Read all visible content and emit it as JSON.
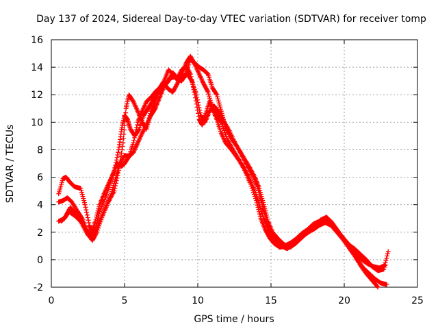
{
  "chart_data": {
    "type": "scatter",
    "title": "Day 137 of 2024, Sidereal Day-to-day VTEC variation (SDTVAR) for receiver tomp",
    "xlabel": "GPS time / hours",
    "ylabel": "SDTVAR / TECUs",
    "xlim": [
      0,
      25
    ],
    "ylim": [
      -2,
      16
    ],
    "xticks": [
      "0",
      "5",
      "10",
      "15",
      "20",
      "25"
    ],
    "yticks": [
      "-2",
      "0",
      "2",
      "4",
      "6",
      "8",
      "10",
      "12",
      "14",
      "16"
    ],
    "grid": true,
    "marker": "+",
    "color": "#ff0000",
    "series": [
      {
        "x": [
          0.5,
          0.8,
          1.0,
          1.3,
          1.6,
          2.0,
          2.3,
          2.6,
          2.8,
          3.0,
          3.3,
          3.6,
          3.9,
          4.2,
          4.5,
          4.8,
          5.0,
          5.3,
          5.6,
          5.9,
          6.2,
          6.5,
          6.8,
          7.1,
          7.4,
          7.7,
          8.0,
          8.3,
          8.6,
          8.9,
          9.2,
          9.5,
          9.8,
          10.1,
          10.3,
          10.5,
          10.8,
          11.0,
          11.3,
          11.6,
          12.0,
          12.4,
          12.8,
          13.2,
          13.6,
          14.0,
          14.3,
          14.6,
          14.9,
          15.2,
          15.6,
          16.0,
          16.4,
          16.8,
          17.2,
          17.6,
          18.0,
          18.4,
          18.8,
          19.2,
          19.6,
          20.0,
          20.4,
          20.8,
          21.2,
          21.6,
          22.0,
          22.4,
          22.8
        ],
        "y": [
          4.8,
          5.9,
          6.0,
          5.6,
          5.3,
          5.2,
          4.0,
          2.5,
          2.0,
          2.8,
          4.0,
          4.8,
          5.5,
          6.2,
          7.0,
          6.8,
          7.0,
          7.5,
          8.5,
          10.0,
          10.8,
          11.5,
          11.8,
          12.2,
          12.5,
          13.0,
          13.8,
          13.5,
          13.2,
          13.8,
          14.1,
          13.5,
          12.0,
          10.2,
          9.8,
          10.5,
          11.5,
          11.0,
          10.5,
          10.0,
          8.8,
          8.0,
          7.3,
          6.5,
          5.5,
          4.3,
          3.0,
          2.2,
          1.6,
          1.2,
          0.9,
          1.0,
          1.2,
          1.5,
          1.8,
          2.1,
          2.5,
          2.9,
          3.1,
          2.6,
          2.0,
          1.5,
          1.0,
          0.5,
          0.0,
          -0.3,
          -0.5,
          -0.6,
          -0.4
        ]
      },
      {
        "x": [
          0.5,
          0.8,
          1.1,
          1.4,
          1.8,
          2.1,
          2.4,
          2.7,
          3.0,
          3.3,
          3.7,
          4.0,
          4.3,
          4.6,
          4.8,
          5.0,
          5.2,
          5.4,
          5.7,
          6.0,
          6.3,
          6.6,
          6.9,
          7.2,
          7.5,
          7.8,
          8.1,
          8.4,
          8.7,
          9.0,
          9.3,
          9.6,
          9.9,
          10.2,
          10.5,
          10.8,
          11.1,
          11.4,
          11.7,
          12.1,
          12.5,
          12.9,
          13.3,
          13.7,
          14.1,
          14.4,
          14.7,
          15.0,
          15.3,
          15.7,
          16.1,
          16.5,
          16.9,
          17.3,
          17.7,
          18.1,
          18.5,
          18.9,
          19.3,
          19.7,
          20.1,
          20.5,
          20.9,
          21.3,
          21.7,
          22.1,
          22.5,
          22.9
        ],
        "y": [
          4.2,
          4.3,
          4.5,
          4.2,
          3.5,
          3.0,
          2.2,
          1.7,
          2.2,
          3.5,
          4.5,
          5.5,
          6.5,
          8.0,
          9.5,
          10.5,
          10.2,
          9.5,
          9.0,
          9.5,
          10.5,
          11.0,
          11.5,
          12.0,
          12.5,
          12.8,
          13.2,
          13.3,
          13.0,
          13.2,
          13.5,
          13.0,
          12.0,
          10.5,
          10.0,
          10.8,
          11.2,
          10.8,
          10.2,
          9.5,
          8.6,
          7.8,
          7.0,
          6.2,
          5.2,
          4.0,
          2.8,
          1.9,
          1.4,
          1.0,
          0.8,
          1.1,
          1.5,
          1.8,
          2.1,
          2.4,
          2.8,
          2.9,
          2.4,
          1.8,
          1.2,
          0.6,
          0.0,
          -0.6,
          -1.0,
          -1.4,
          -1.7,
          -1.8
        ]
      },
      {
        "x": [
          0.5,
          0.9,
          1.2,
          1.6,
          2.0,
          2.4,
          2.8,
          3.1,
          3.5,
          3.9,
          4.3,
          4.6,
          4.9,
          5.1,
          5.3,
          5.6,
          5.9,
          6.2,
          6.5,
          6.8,
          7.1,
          7.4,
          7.7,
          8.0,
          8.3,
          8.6,
          8.9,
          9.2,
          9.5,
          9.8,
          10.1,
          10.4,
          10.7,
          11.0,
          11.3,
          11.6,
          11.9,
          12.3,
          12.7,
          13.1,
          13.5,
          13.9,
          14.2,
          14.5,
          14.8,
          15.1,
          15.5,
          15.9,
          16.3,
          16.7,
          17.1,
          17.5,
          17.9,
          18.3,
          18.7,
          19.1,
          19.5,
          19.9,
          20.3,
          20.7,
          21.1,
          21.5,
          21.9,
          22.3
        ],
        "y": [
          2.8,
          3.0,
          3.5,
          3.2,
          2.8,
          2.0,
          1.4,
          2.0,
          3.2,
          4.2,
          5.0,
          6.5,
          8.5,
          11.0,
          12.0,
          11.5,
          10.8,
          10.0,
          9.5,
          10.8,
          11.5,
          12.5,
          12.8,
          12.4,
          12.2,
          12.8,
          13.5,
          14.3,
          14.8,
          14.2,
          13.5,
          12.8,
          12.2,
          11.0,
          10.2,
          9.2,
          8.5,
          8.0,
          7.4,
          6.8,
          6.0,
          5.0,
          4.0,
          3.0,
          2.2,
          1.8,
          1.3,
          1.0,
          1.2,
          1.5,
          1.9,
          2.2,
          2.6,
          2.8,
          3.0,
          2.8,
          2.2,
          1.6,
          1.0,
          0.3,
          -0.4,
          -1.0,
          -1.5,
          -2.0
        ]
      },
      {
        "x": [
          0.7,
          1.0,
          1.3,
          1.7,
          2.1,
          2.5,
          2.9,
          3.3,
          3.7,
          4.1,
          4.4,
          4.7,
          5.0,
          5.3,
          5.6,
          5.9,
          6.2,
          6.5,
          6.8,
          7.1,
          7.4,
          7.7,
          8.0,
          8.3,
          8.6,
          8.9,
          9.2,
          9.5,
          9.8,
          10.1,
          10.4,
          10.7,
          11.0,
          11.3,
          11.6,
          11.9,
          12.3,
          12.7,
          13.1,
          13.5,
          13.9,
          14.2,
          14.5,
          14.8,
          15.1,
          15.5,
          15.9,
          16.3,
          16.7,
          17.1,
          17.5,
          17.9,
          18.3,
          18.7,
          19.1,
          19.5,
          19.9,
          20.3,
          20.7,
          21.1,
          21.5,
          21.9,
          22.3,
          22.7,
          23.0
        ],
        "y": [
          2.8,
          3.2,
          3.8,
          3.3,
          2.6,
          1.8,
          1.6,
          2.8,
          3.8,
          4.8,
          6.0,
          7.0,
          7.6,
          7.5,
          7.8,
          8.5,
          9.2,
          9.8,
          10.5,
          11.0,
          11.8,
          12.6,
          13.0,
          13.6,
          13.2,
          13.0,
          13.6,
          14.6,
          14.3,
          14.0,
          13.8,
          13.5,
          12.5,
          12.0,
          10.8,
          9.6,
          8.8,
          8.2,
          7.5,
          6.8,
          6.0,
          5.2,
          4.0,
          2.8,
          2.0,
          1.5,
          1.1,
          0.9,
          1.2,
          1.6,
          2.0,
          2.2,
          2.5,
          2.7,
          2.5,
          2.0,
          1.5,
          1.1,
          0.8,
          0.4,
          0.0,
          -0.5,
          -0.8,
          -0.7,
          0.6
        ]
      }
    ]
  }
}
